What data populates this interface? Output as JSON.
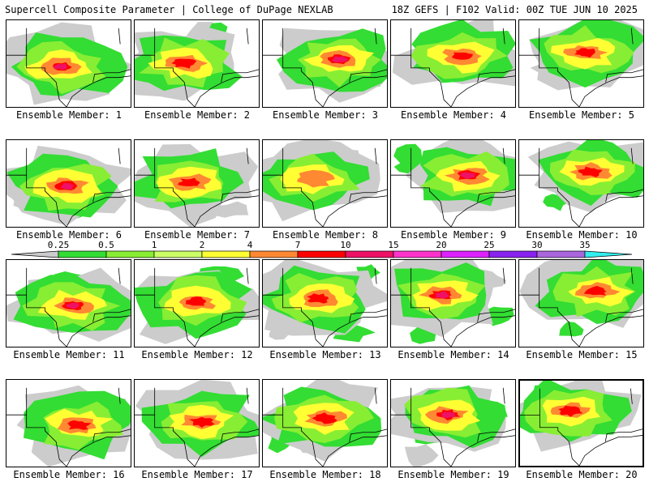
{
  "header": {
    "title_left": "Supercell Composite Parameter | College of DuPage NEXLAB",
    "title_right": "18Z GEFS | F102 Valid: 00Z TUE JUN 10 2025"
  },
  "legend": {
    "ticks": [
      "0.25",
      "0.5",
      "1",
      "2",
      "4",
      "7",
      "10",
      "15",
      "20",
      "25",
      "30",
      "35"
    ],
    "colors": [
      "#cccccc",
      "#33dd33",
      "#88ee33",
      "#ccff66",
      "#ffff33",
      "#ff8833",
      "#ff0000",
      "#ee1166",
      "#ff33cc",
      "#dd22ff",
      "#8822ee",
      "#aa66dd",
      "#33eeee"
    ]
  },
  "panels": [
    {
      "label": "Ensemble Member: 1",
      "peak": "10"
    },
    {
      "label": "Ensemble Member: 2",
      "peak": "7"
    },
    {
      "label": "Ensemble Member: 3",
      "peak": "10"
    },
    {
      "label": "Ensemble Member: 4",
      "peak": "7"
    },
    {
      "label": "Ensemble Member: 5",
      "peak": "7"
    },
    {
      "label": "Ensemble Member: 6",
      "peak": "10"
    },
    {
      "label": "Ensemble Member: 7",
      "peak": "7"
    },
    {
      "label": "Ensemble Member: 8",
      "peak": "4"
    },
    {
      "label": "Ensemble Member: 9",
      "peak": "10"
    },
    {
      "label": "Ensemble Member: 10",
      "peak": "7"
    },
    {
      "label": "Ensemble Member: 11",
      "peak": "10"
    },
    {
      "label": "Ensemble Member: 12",
      "peak": "7"
    },
    {
      "label": "Ensemble Member: 13",
      "peak": "7"
    },
    {
      "label": "Ensemble Member: 14",
      "peak": "10"
    },
    {
      "label": "Ensemble Member: 15",
      "peak": "7"
    },
    {
      "label": "Ensemble Member: 16",
      "peak": "7"
    },
    {
      "label": "Ensemble Member: 17",
      "peak": "7"
    },
    {
      "label": "Ensemble Member: 18",
      "peak": "7"
    },
    {
      "label": "Ensemble Member: 19",
      "peak": "10"
    },
    {
      "label": "Ensemble Member: 20",
      "peak": "7"
    }
  ],
  "selected_panel": "Ensemble Member: 20"
}
